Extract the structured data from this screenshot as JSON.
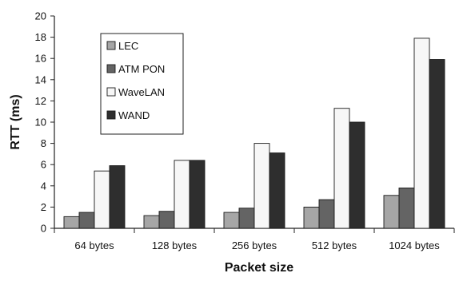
{
  "chart_data": {
    "type": "bar",
    "title": "",
    "xlabel": "Packet size",
    "ylabel": "RTT (ms)",
    "ylim": [
      0,
      20
    ],
    "yticks": [
      0,
      2,
      4,
      6,
      8,
      10,
      12,
      14,
      16,
      18,
      20
    ],
    "grid": false,
    "legend_position": "top-left",
    "categories": [
      "64 bytes",
      "128 bytes",
      "256 bytes",
      "512 bytes",
      "1024 bytes"
    ],
    "series": [
      {
        "name": "LEC",
        "color": "#a6a6a6",
        "values": [
          1.1,
          1.2,
          1.5,
          2.0,
          3.1
        ]
      },
      {
        "name": "ATM PON",
        "color": "#646464",
        "values": [
          1.5,
          1.6,
          1.9,
          2.7,
          3.8
        ]
      },
      {
        "name": "WaveLAN",
        "color": "#f7f7f7",
        "values": [
          5.4,
          6.4,
          8.0,
          11.3,
          17.9
        ]
      },
      {
        "name": "WAND",
        "color": "#2e2e2e",
        "values": [
          5.9,
          6.4,
          7.1,
          10.0,
          15.9
        ]
      }
    ]
  }
}
